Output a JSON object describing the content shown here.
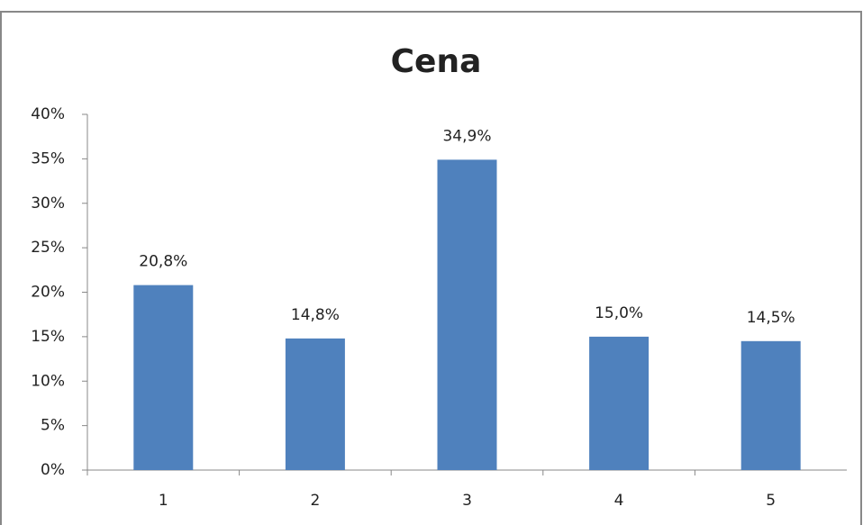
{
  "chart_data": {
    "type": "bar",
    "title": "Cena",
    "categories": [
      "1",
      "2",
      "3",
      "4",
      "5"
    ],
    "values": [
      20.8,
      14.8,
      34.9,
      15.0,
      14.5
    ],
    "value_labels": [
      "20,8%",
      "14,8%",
      "34,9%",
      "15,0%",
      "14,5%"
    ],
    "color": "#4f81bd",
    "ylim": [
      0,
      40
    ],
    "yticks": [
      {
        "value": 0,
        "label": "0%"
      },
      {
        "value": 5,
        "label": "5%"
      },
      {
        "value": 10,
        "label": "10%"
      },
      {
        "value": 15,
        "label": "15%"
      },
      {
        "value": 20,
        "label": "20%"
      },
      {
        "value": 25,
        "label": "25%"
      },
      {
        "value": 30,
        "label": "30%"
      },
      {
        "value": 35,
        "label": "35%"
      },
      {
        "value": 40,
        "label": "40%"
      }
    ],
    "grid": false
  }
}
